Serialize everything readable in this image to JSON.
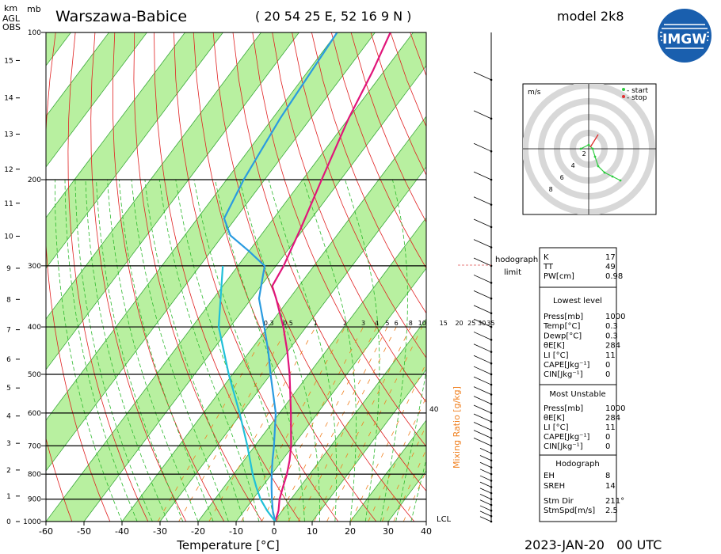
{
  "header": {
    "axis_label_left": "km\nAGL\nOBS",
    "mb_label": "mb",
    "station": "Warszawa-Babice",
    "coords": "( 20 54 25 E, 52 16 9 N )",
    "model": "model 2k8",
    "logo_text": "IMGW",
    "datetime": "2023-JAN-20   00 UTC"
  },
  "chart_data": {
    "type": "line",
    "title": "Warszawa-Babice",
    "xlabel": "Temperature [°C]",
    "ylabel": "mb",
    "xlim": [
      -60,
      40
    ],
    "ylim": [
      1000,
      100
    ],
    "x_ticks": [
      -60,
      -50,
      -40,
      -30,
      -20,
      -10,
      0,
      10,
      20,
      30,
      40
    ],
    "pressure_ticks": [
      100,
      200,
      300,
      400,
      500,
      600,
      700,
      800,
      900,
      1000
    ],
    "height_ticks_km": [
      0,
      1,
      2,
      3,
      4,
      5,
      6,
      7,
      8,
      9,
      10,
      11,
      12,
      13,
      14,
      15
    ],
    "mixing_ratio_label": "Mixing Ratio [g/kg]",
    "mixing_ratio_ticks": [
      "0.3",
      "0.5",
      "1",
      "2",
      "3",
      "4",
      "5",
      "6",
      "8",
      "10",
      "15",
      "20",
      "25",
      "30",
      "35"
    ],
    "mixing_ratio_extra": "40",
    "lcl_label": "LCL",
    "series": [
      {
        "color": "#e0157a",
        "points": [
          [
            1000,
            0.3
          ],
          [
            950,
            -1.0
          ],
          [
            900,
            -3.0
          ],
          [
            850,
            -4.5
          ],
          [
            800,
            -6.0
          ],
          [
            750,
            -8.0
          ],
          [
            700,
            -10.5
          ],
          [
            600,
            -17.0
          ],
          [
            500,
            -25.0
          ],
          [
            450,
            -30.0
          ],
          [
            400,
            -36.0
          ],
          [
            350,
            -43.5
          ],
          [
            330,
            -47.0
          ],
          [
            300,
            -48.0
          ],
          [
            250,
            -51.0
          ],
          [
            200,
            -55.0
          ],
          [
            150,
            -60.0
          ],
          [
            120,
            -63.0
          ],
          [
            100,
            -66.0
          ]
        ]
      },
      {
        "color": "#2a9be0",
        "points": [
          [
            1000,
            0.3
          ],
          [
            950,
            -2.5
          ],
          [
            900,
            -5.0
          ],
          [
            850,
            -7.5
          ],
          [
            800,
            -10.0
          ],
          [
            750,
            -12.5
          ],
          [
            700,
            -15.0
          ],
          [
            600,
            -21.0
          ],
          [
            500,
            -30.0
          ],
          [
            450,
            -35.0
          ],
          [
            400,
            -41.0
          ],
          [
            350,
            -48.0
          ],
          [
            300,
            -53.0
          ],
          [
            280,
            -60.0
          ],
          [
            260,
            -68.0
          ],
          [
            240,
            -73.0
          ],
          [
            200,
            -75.5
          ],
          [
            150,
            -78.0
          ],
          [
            100,
            -80.0
          ]
        ]
      },
      {
        "color": "#20c0d8",
        "points": [
          [
            1000,
            0.3
          ],
          [
            950,
            -4.0
          ],
          [
            900,
            -8.0
          ],
          [
            850,
            -11.5
          ],
          [
            800,
            -15.0
          ],
          [
            700,
            -22.0
          ],
          [
            600,
            -30.5
          ],
          [
            500,
            -41.0
          ],
          [
            400,
            -53.0
          ],
          [
            300,
            -64.0
          ]
        ]
      }
    ]
  },
  "hodograph": {
    "unit_label": "m/s",
    "legend_start": "- start",
    "legend_stop": "- stop",
    "ring_labels": [
      "2",
      "4",
      "6",
      "8"
    ],
    "side_label": "hodograph\nlimit",
    "points": [
      [
        -1,
        0
      ],
      [
        0,
        0.5
      ],
      [
        0.5,
        0
      ],
      [
        0.8,
        -1
      ],
      [
        1.2,
        -2.2
      ],
      [
        2,
        -3
      ],
      [
        3,
        -3.5
      ],
      [
        4,
        -4
      ]
    ],
    "start_color": "#2ecc40",
    "stop_color": "#e03030"
  },
  "indices": {
    "top": [
      {
        "label": "K",
        "value": "17"
      },
      {
        "label": "TT",
        "value": "49"
      },
      {
        "label": "PW[cm]",
        "value": "0.98"
      }
    ],
    "lowest_title": "Lowest level",
    "lowest": [
      {
        "label": "Press[mb]",
        "value": "1000"
      },
      {
        "label": "Temp[°C]",
        "value": "0.3"
      },
      {
        "label": "Dewp[°C]",
        "value": "0.3"
      },
      {
        "label": "θE[K]",
        "value": "284"
      },
      {
        "label": "LI [°C]",
        "value": "11"
      },
      {
        "label": "CAPE[Jkg⁻¹]",
        "value": "0"
      },
      {
        "label": "CIN[Jkg⁻¹]",
        "value": "0"
      }
    ],
    "unstable_title": "Most Unstable",
    "unstable": [
      {
        "label": "Press[mb]",
        "value": "1000"
      },
      {
        "label": "θE[K]",
        "value": "284"
      },
      {
        "label": "LI [°C]",
        "value": "11"
      },
      {
        "label": "CAPE[Jkg⁻¹]",
        "value": "0"
      },
      {
        "label": "CIN[Jkg⁻¹]",
        "value": "0"
      }
    ],
    "hodo_title": "Hodograph",
    "hodo": [
      {
        "label": "EH",
        "value": "8"
      },
      {
        "label": "SREH",
        "value": "14"
      }
    ],
    "storm": [
      {
        "label": "Stm Dir",
        "value": "211°"
      },
      {
        "label": "StmSpd[m/s]",
        "value": "2.5"
      }
    ]
  },
  "colors": {
    "band_green": "#b8f0a0",
    "isotherm_band_edge": "#3aa83a",
    "dry_adiabat": "#e02020",
    "moist_adiabat": "#2db82d",
    "mixing_ratio": "#f08020",
    "isobar": "#000000",
    "hodo_ring": "#d8d8d8"
  }
}
